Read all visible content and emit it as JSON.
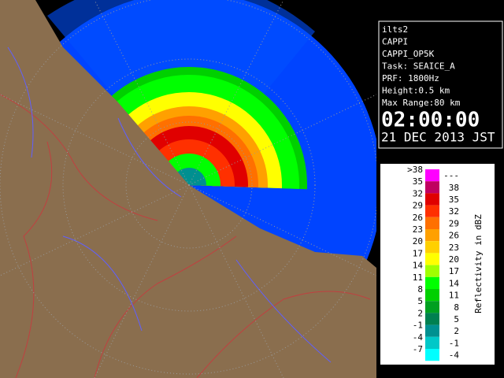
{
  "info": {
    "lines": [
      "ilts2",
      "CAPPI",
      "CAPPI_OP5K",
      "Task: SEAICE_A",
      "PRF: 1800Hz",
      "Height:0.5 km",
      "Max Range:80 km"
    ],
    "time": "02:00:00",
    "date": "21 DEC 2013 JST"
  },
  "legend": {
    "title": "Reflectivity in dBZ",
    "rows": [
      {
        "low": ">38",
        "high": "---",
        "color": "#ff00ff"
      },
      {
        "low": "35",
        "high": "38",
        "color": "#c00060"
      },
      {
        "low": "32",
        "high": "35",
        "color": "#e00000"
      },
      {
        "low": "29",
        "high": "32",
        "color": "#ff3000"
      },
      {
        "low": "26",
        "high": "29",
        "color": "#ff7000"
      },
      {
        "low": "23",
        "high": "26",
        "color": "#ffa000"
      },
      {
        "low": "20",
        "high": "23",
        "color": "#ffd000"
      },
      {
        "low": "17",
        "high": "20",
        "color": "#ffff00"
      },
      {
        "low": "14",
        "high": "17",
        "color": "#a0ff00"
      },
      {
        "low": "11",
        "high": "14",
        "color": "#00ff00"
      },
      {
        "low": "8",
        "high": "11",
        "color": "#00d000"
      },
      {
        "low": "5",
        "high": "8",
        "color": "#00a020"
      },
      {
        "low": "2",
        "high": "5",
        "color": "#008050"
      },
      {
        "low": "-1",
        "high": "2",
        "color": "#009090"
      },
      {
        "low": "-4",
        "high": "-1",
        "color": "#00c8c8"
      },
      {
        "low": "-7",
        "high": "-4",
        "color": "#00ffff"
      }
    ]
  }
}
